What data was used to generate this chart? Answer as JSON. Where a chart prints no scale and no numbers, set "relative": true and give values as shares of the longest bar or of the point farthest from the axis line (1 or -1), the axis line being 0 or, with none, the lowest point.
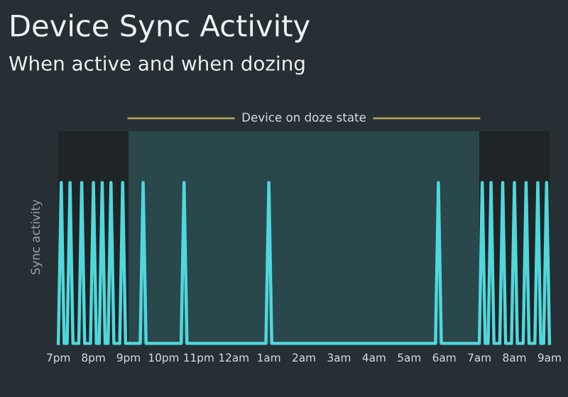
{
  "chart_data": {
    "type": "line",
    "title": "Device Sync Activity",
    "subtitle": "When active and when dozing",
    "ylabel": "Sync activity",
    "relative": true,
    "tick_labels": "x",
    "grid": false,
    "marker": "none",
    "line_style": "solid",
    "categories": [
      "7pm",
      null,
      null,
      null,
      null,
      null,
      null,
      null,
      null,
      null,
      null,
      null,
      "8pm",
      null,
      null,
      null,
      null,
      null,
      null,
      null,
      null,
      null,
      null,
      null,
      "9pm",
      null,
      null,
      null,
      null,
      null,
      null,
      null,
      null,
      null,
      null,
      null,
      "10pm",
      null,
      null,
      null,
      null,
      null,
      null,
      null,
      null,
      null,
      null,
      null,
      "11pm",
      null,
      null,
      null,
      null,
      null,
      null,
      null,
      null,
      null,
      null,
      null,
      "12am",
      null,
      null,
      null,
      null,
      null,
      null,
      null,
      null,
      null,
      null,
      null,
      "1am",
      null,
      null,
      null,
      null,
      null,
      null,
      null,
      null,
      null,
      null,
      null,
      "2am",
      null,
      null,
      null,
      null,
      null,
      null,
      null,
      null,
      null,
      null,
      null,
      "3am",
      null,
      null,
      null,
      null,
      null,
      null,
      null,
      null,
      null,
      null,
      null,
      "4am",
      null,
      null,
      null,
      null,
      null,
      null,
      null,
      null,
      null,
      null,
      null,
      "5am",
      null,
      null,
      null,
      null,
      null,
      null,
      null,
      null,
      null,
      null,
      null,
      "6am",
      null,
      null,
      null,
      null,
      null,
      null,
      null,
      null,
      null,
      null,
      null,
      "7am",
      null,
      null,
      null,
      null,
      null,
      null,
      null,
      null,
      null,
      null,
      null,
      "8am",
      null,
      null,
      null,
      null,
      null,
      null,
      null,
      null,
      null,
      null,
      null,
      "9am"
    ],
    "series": [
      {
        "color": "#4fd8dc",
        "values": [
          0,
          1,
          0,
          0,
          1,
          0,
          0,
          0,
          1,
          0,
          0,
          0,
          1,
          0,
          0,
          1,
          0,
          0,
          1,
          0,
          0,
          0,
          1,
          0,
          0,
          0,
          0,
          0,
          0,
          1,
          0,
          0,
          0,
          0,
          0,
          0,
          0,
          0,
          0,
          0,
          0,
          0,
          0,
          1,
          0,
          0,
          0,
          0,
          0,
          0,
          0,
          0,
          0,
          0,
          0,
          0,
          0,
          0,
          0,
          0,
          0,
          0,
          0,
          0,
          0,
          0,
          0,
          0,
          0,
          0,
          0,
          0,
          1,
          0,
          0,
          0,
          0,
          0,
          0,
          0,
          0,
          0,
          0,
          0,
          0,
          0,
          0,
          0,
          0,
          0,
          0,
          0,
          0,
          0,
          0,
          0,
          0,
          0,
          0,
          0,
          0,
          0,
          0,
          0,
          0,
          0,
          0,
          0,
          0,
          0,
          0,
          0,
          0,
          0,
          0,
          0,
          0,
          0,
          0,
          0,
          0,
          0,
          0,
          0,
          0,
          0,
          0,
          0,
          0,
          0,
          1,
          0,
          0,
          0,
          0,
          0,
          0,
          0,
          0,
          0,
          0,
          0,
          0,
          0,
          0,
          1,
          0,
          0,
          1,
          0,
          0,
          0,
          1,
          0,
          0,
          0,
          1,
          0,
          0,
          0,
          1,
          0,
          0,
          0,
          1,
          0,
          0,
          1,
          0
        ]
      }
    ],
    "bands": [
      {
        "axis": "x",
        "from": "7pm",
        "to": "9pm",
        "color": "#1f2427"
      },
      {
        "axis": "x",
        "from": "9pm",
        "to": "7am",
        "color": "#2a474c",
        "label": "Device on doze state"
      },
      {
        "axis": "x",
        "from": "7am",
        "to": "9am",
        "color": "#1f2427"
      }
    ]
  }
}
